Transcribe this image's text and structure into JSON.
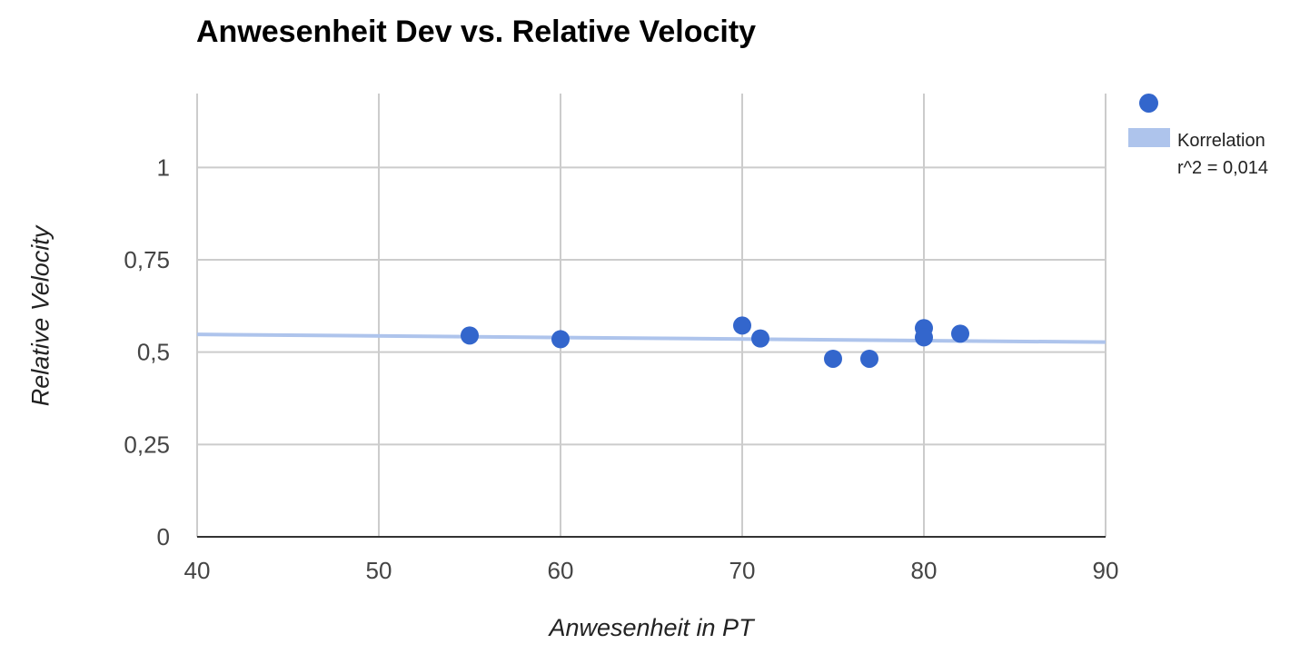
{
  "chart_data": {
    "type": "scatter",
    "title": "Anwesenheit Dev vs. Relative Velocity",
    "xlabel": "Anwesenheit in PT",
    "ylabel": "Relative Velocity",
    "xlim": [
      40,
      90
    ],
    "ylim": [
      0,
      1.2
    ],
    "x_ticks": [
      40,
      50,
      60,
      70,
      80,
      90
    ],
    "x_tick_labels": [
      "40",
      "50",
      "60",
      "70",
      "80",
      "90"
    ],
    "y_ticks": [
      0,
      0.25,
      0.5,
      0.75,
      1
    ],
    "y_tick_labels": [
      "0",
      "0,25",
      "0,5",
      "0,75",
      "1"
    ],
    "grid": true,
    "legend_position": "top-right",
    "series": [
      {
        "color": "#3366cc",
        "points": [
          {
            "x": 55,
            "y": 0.545
          },
          {
            "x": 60,
            "y": 0.535
          },
          {
            "x": 70,
            "y": 0.572
          },
          {
            "x": 71,
            "y": 0.537
          },
          {
            "x": 75,
            "y": 0.482
          },
          {
            "x": 77,
            "y": 0.482
          },
          {
            "x": 80,
            "y": 0.565
          },
          {
            "x": 80,
            "y": 0.54
          },
          {
            "x": 82,
            "y": 0.55
          }
        ]
      }
    ],
    "trendline": {
      "name": "Korrelation",
      "label": "r^2 = 0,014",
      "color": "#aec4ec",
      "start": {
        "x": 40,
        "y": 0.548
      },
      "end": {
        "x": 90,
        "y": 0.527
      }
    }
  }
}
